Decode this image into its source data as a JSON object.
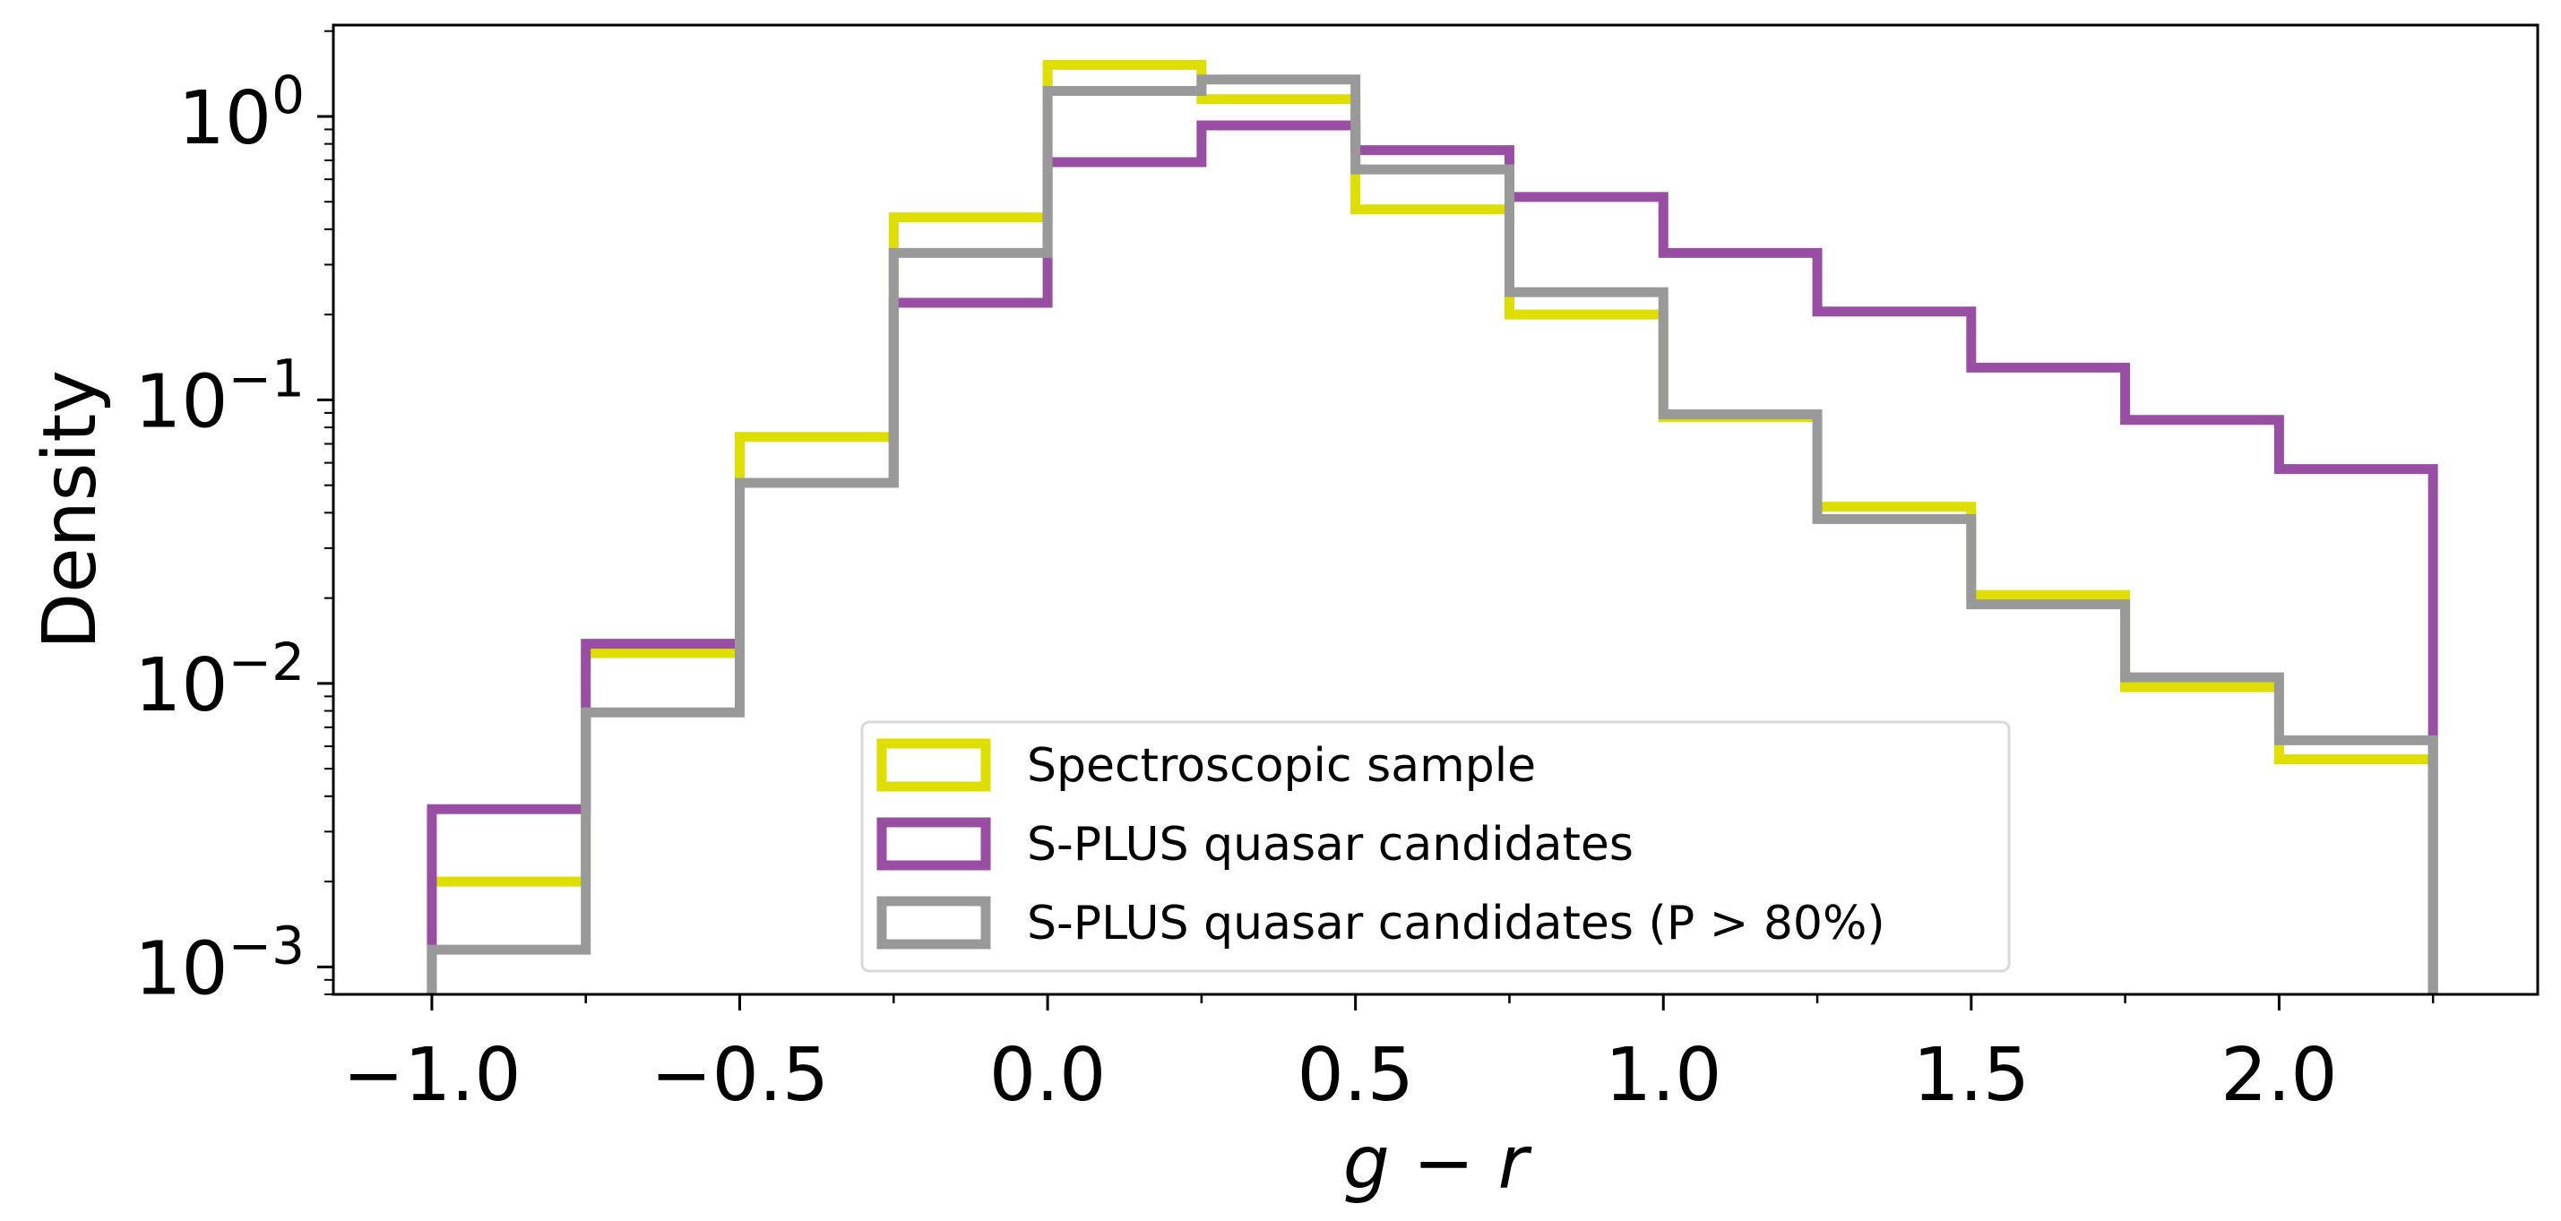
{
  "chart_data": {
    "type": "histogram",
    "xlabel": "g − r",
    "ylabel": "Density",
    "yscale": "log",
    "xlim": [
      -1.16,
      2.42
    ],
    "ylim": [
      0.0008,
      2.1
    ],
    "bin_edges": [
      -1.0,
      -0.75,
      -0.5,
      -0.25,
      0.0,
      0.25,
      0.5,
      0.75,
      1.0,
      1.25,
      1.5,
      1.75,
      2.0,
      2.25
    ],
    "x_ticks": [
      {
        "value": -1.0,
        "label": "−1.0"
      },
      {
        "value": -0.5,
        "label": "−0.5"
      },
      {
        "value": 0.0,
        "label": "0.0"
      },
      {
        "value": 0.5,
        "label": "0.5"
      },
      {
        "value": 1.0,
        "label": "1.0"
      },
      {
        "value": 1.5,
        "label": "1.5"
      },
      {
        "value": 2.0,
        "label": "2.0"
      }
    ],
    "y_ticks": [
      {
        "value": 0.001,
        "base": "10",
        "exp": "−3"
      },
      {
        "value": 0.01,
        "base": "10",
        "exp": "−2"
      },
      {
        "value": 0.1,
        "base": "10",
        "exp": "−1"
      },
      {
        "value": 1,
        "base": "10",
        "exp": "0"
      }
    ],
    "series": [
      {
        "name": "Spectroscopic sample",
        "color": "#dede00",
        "values": [
          0.002,
          0.0128,
          0.074,
          0.44,
          1.52,
          1.15,
          0.47,
          0.2,
          0.087,
          0.042,
          0.0205,
          0.0097,
          0.0054
        ]
      },
      {
        "name": "S-PLUS quasar candidates",
        "color": "#984ea3",
        "values": [
          0.0036,
          0.0138,
          0.051,
          0.22,
          0.69,
          0.93,
          0.76,
          0.52,
          0.33,
          0.205,
          0.13,
          0.085,
          0.057
        ]
      },
      {
        "name": "S-PLUS quasar candidates (P > 80%)",
        "color": "#999999",
        "values": [
          0.00115,
          0.0079,
          0.051,
          0.33,
          1.23,
          1.35,
          0.65,
          0.24,
          0.089,
          0.038,
          0.019,
          0.0105,
          0.0063
        ]
      }
    ],
    "legend_position": "lower-center"
  }
}
